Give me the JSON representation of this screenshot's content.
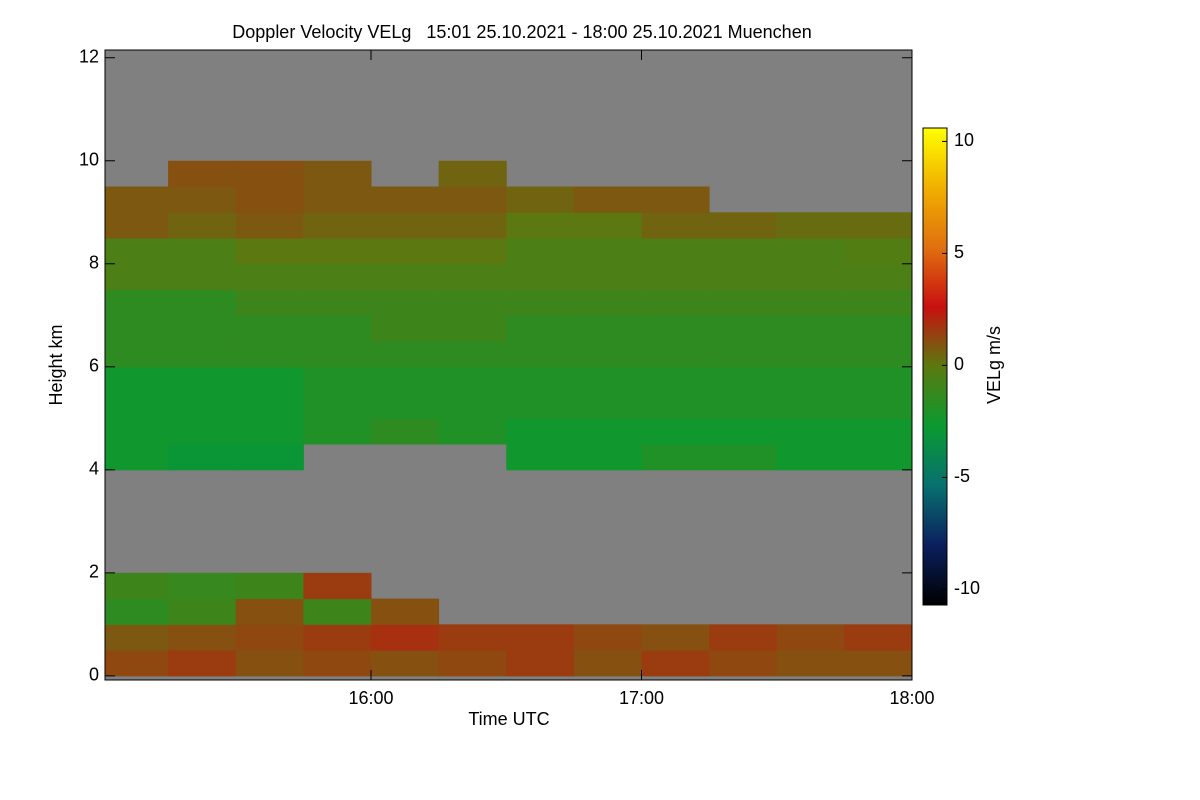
{
  "chart_data": {
    "type": "heatmap",
    "title": "Doppler Velocity VELg   15:01 25.10.2021 - 18:00 25.10.2021 Muenchen",
    "xlabel": "Time UTC",
    "ylabel": "Height km",
    "colorbar_label": "VELg m/s",
    "xlim": [
      15.0167,
      18.0
    ],
    "xticks": [
      {
        "value": 16,
        "label": "16:00"
      },
      {
        "value": 17,
        "label": "17:00"
      },
      {
        "value": 18,
        "label": "18:00"
      }
    ],
    "ylim": [
      -0.08,
      12.15
    ],
    "yticks": [
      0,
      2,
      4,
      6,
      8,
      10,
      12
    ],
    "zlim": [
      -10.7,
      10.6
    ],
    "zticks": [
      -10,
      -5,
      0,
      5,
      10
    ],
    "colorscale": [
      "#000000",
      "#0b1f5e",
      "#08706f",
      "#0a9a30",
      "#5a7a10",
      "#c81010",
      "#e07010",
      "#f0b000",
      "#ffff00"
    ],
    "nodata_color": "#808080",
    "x": [
      15.125,
      15.375,
      15.625,
      15.875,
      16.125,
      16.375,
      16.625,
      16.875,
      17.125,
      17.375,
      17.625,
      17.875
    ],
    "y": [
      0.25,
      0.75,
      1.25,
      1.75,
      2.25,
      2.75,
      3.25,
      3.75,
      4.25,
      4.75,
      5.25,
      5.75,
      6.25,
      6.75,
      7.25,
      7.75,
      8.25,
      8.75,
      9.25,
      9.75,
      10.25,
      10.75,
      11.25,
      11.75
    ],
    "z": [
      [
        1.2,
        0.8,
        -1.5,
        -1.0,
        null,
        null,
        null,
        null,
        -2.5,
        -2.5,
        -2.5,
        -2.5,
        -1.5,
        -1.5,
        -1.5,
        -0.5,
        -0.5,
        0.8,
        0.8,
        null,
        null,
        null,
        null,
        null
      ],
      [
        1.5,
        1.0,
        -1.0,
        -1.2,
        null,
        null,
        null,
        null,
        -3,
        -2.5,
        -2.5,
        -2.5,
        -1.5,
        -1.5,
        -1.5,
        -0.5,
        -0.5,
        0.5,
        0.8,
        1.0,
        null,
        null,
        null,
        null
      ],
      [
        1.0,
        1.2,
        1.0,
        -1.0,
        null,
        null,
        null,
        null,
        -3,
        -2.5,
        -2.5,
        -2.5,
        -1.5,
        -1.5,
        -1.0,
        -0.5,
        0,
        0.8,
        1.0,
        1.0,
        null,
        null,
        null,
        null
      ],
      [
        1.2,
        1.5,
        -1.0,
        1.5,
        null,
        null,
        null,
        null,
        null,
        -2,
        -2,
        -2,
        -1.5,
        -1.5,
        -1,
        -0.5,
        0,
        0.5,
        0.8,
        0.8,
        null,
        null,
        null,
        null
      ],
      [
        1.0,
        1.8,
        1.0,
        null,
        null,
        null,
        null,
        null,
        null,
        -1.5,
        -2,
        -2,
        -1.5,
        -1,
        -1,
        -0.5,
        0,
        0.5,
        0.8,
        null,
        null,
        null,
        null,
        null
      ],
      [
        1.2,
        1.5,
        null,
        null,
        null,
        null,
        null,
        null,
        null,
        -2,
        -2,
        -2,
        -1.5,
        -1,
        -1,
        -0.5,
        0,
        0.5,
        0.8,
        0.5,
        null,
        null,
        null,
        null
      ],
      [
        1.5,
        1.5,
        null,
        null,
        null,
        null,
        null,
        null,
        -2.5,
        -2.5,
        -2,
        -2,
        -1.5,
        -1.5,
        -1,
        -0.5,
        -0.5,
        0,
        0.5,
        null,
        null,
        null,
        null,
        null
      ],
      [
        1.0,
        1.2,
        null,
        null,
        null,
        null,
        null,
        null,
        -2.5,
        -2.5,
        -2,
        -2,
        -1.5,
        -1.5,
        -1,
        -0.5,
        -0.5,
        0,
        0.8,
        null,
        null,
        null,
        null,
        null
      ],
      [
        1.5,
        1.0,
        null,
        null,
        null,
        null,
        null,
        null,
        -2,
        -2.5,
        -2,
        -2,
        -1.5,
        -1.5,
        -1,
        -0.5,
        -0.5,
        0.5,
        0.8,
        null,
        null,
        null,
        null,
        null
      ],
      [
        1.2,
        1.5,
        null,
        null,
        null,
        null,
        null,
        null,
        -2,
        -2.5,
        -2,
        -2,
        -1.5,
        -1.5,
        -1,
        -0.5,
        -0.5,
        0.5,
        null,
        null,
        null,
        null,
        null,
        null
      ],
      [
        1.0,
        1.2,
        null,
        null,
        null,
        null,
        null,
        null,
        -2.5,
        -2.5,
        -2,
        -2,
        -1.5,
        -1.5,
        -1,
        -0.5,
        -0.5,
        0.3,
        null,
        null,
        null,
        null,
        null,
        null
      ],
      [
        1.0,
        1.5,
        null,
        null,
        null,
        null,
        null,
        null,
        -2.5,
        -2.5,
        -2,
        -2,
        -1.5,
        -1.5,
        -1,
        -0.5,
        -0.3,
        0.3,
        null,
        null,
        null,
        null,
        null,
        null
      ]
    ]
  }
}
